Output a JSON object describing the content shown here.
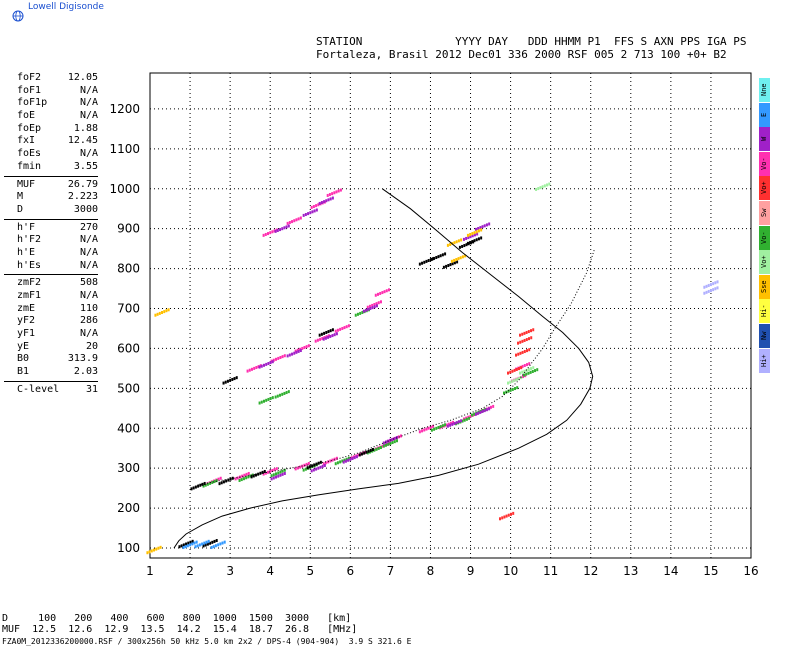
{
  "header": {
    "brand": "Lowell Digisonde",
    "line1": "STATION              YYYY DAY   DDD HHMM P1  FFS S AXN PPS IGA PS",
    "line2": "Fortaleza, Brasil 2012 Dec01 336 2000 RSF 005 2 713 100 +0+ B2"
  },
  "params": [
    {
      "label": "foF2",
      "value": "12.05"
    },
    {
      "label": "foF1",
      "value": "N/A"
    },
    {
      "label": "foF1p",
      "value": "N/A"
    },
    {
      "label": "foE",
      "value": "N/A"
    },
    {
      "label": "foEp",
      "value": "1.88"
    },
    {
      "label": "fxI",
      "value": "12.45"
    },
    {
      "label": "foEs",
      "value": "N/A"
    },
    {
      "label": "fmin",
      "value": "3.55"
    },
    {
      "sep": true
    },
    {
      "label": "MUF",
      "value": "26.79"
    },
    {
      "label": "M",
      "value": "2.223"
    },
    {
      "label": "D",
      "value": "3000"
    },
    {
      "sep": true
    },
    {
      "label": "h'F",
      "value": "270"
    },
    {
      "label": "h'F2",
      "value": "N/A"
    },
    {
      "label": "h'E",
      "value": "N/A"
    },
    {
      "label": "h'Es",
      "value": "N/A"
    },
    {
      "sep": true
    },
    {
      "label": "zmF2",
      "value": "508"
    },
    {
      "label": "zmF1",
      "value": "N/A"
    },
    {
      "label": "zmE",
      "value": "110"
    },
    {
      "label": "yF2",
      "value": "286"
    },
    {
      "label": "yF1",
      "value": "N/A"
    },
    {
      "label": "yE",
      "value": "20"
    },
    {
      "label": "B0",
      "value": "313.9"
    },
    {
      "label": "B1",
      "value": "2.03"
    },
    {
      "sep": true
    },
    {
      "label": "C-level",
      "value": "31"
    }
  ],
  "legend": [
    {
      "label": "Nne",
      "color": "#6ff0f0"
    },
    {
      "label": "E",
      "color": "#3399ff"
    },
    {
      "label": "W",
      "color": "#a020c8"
    },
    {
      "label": "Vo-",
      "color": "#ff30b0"
    },
    {
      "label": "Vo+",
      "color": "#ff3030"
    },
    {
      "label": "Sw",
      "color": "#ffa0a0"
    },
    {
      "label": "Vo-",
      "color": "#30b030"
    },
    {
      "label": "Vo+",
      "color": "#a0f0a0"
    },
    {
      "label": "Sse",
      "color": "#ffc000"
    },
    {
      "label": "Hi-",
      "color": "#ffff40"
    },
    {
      "label": "Nw",
      "color": "#2050b0"
    },
    {
      "label": "Hi+",
      "color": "#b0b0ff"
    }
  ],
  "muf_table": {
    "line1": "D     100   200   400   600   800  1000  1500  3000   [km]",
    "line2": "MUF  12.5  12.6  12.9  13.5  14.2  15.4  18.7  26.8   [MHz]"
  },
  "footer": "FZA0M_2012336200000.RSF / 300x256h 50 kHz 5.0 km 2x2 / DPS-4 (904-904)  3.9 S 321.6 E",
  "chart_data": {
    "type": "scatter",
    "title": "",
    "xlabel": "",
    "ylabel": "",
    "xlim": [
      1,
      16
    ],
    "ylim": [
      75,
      1290
    ],
    "xticks": [
      1,
      2,
      3,
      4,
      5,
      6,
      7,
      8,
      9,
      10,
      11,
      12,
      13,
      14,
      15,
      16
    ],
    "yticks": [
      100,
      200,
      300,
      400,
      500,
      600,
      700,
      800,
      900,
      1000,
      1100,
      1200
    ],
    "grid": true,
    "profile_curve": [
      [
        1.6,
        100
      ],
      [
        1.72,
        118
      ],
      [
        1.9,
        135
      ],
      [
        2.3,
        158
      ],
      [
        2.8,
        180
      ],
      [
        3.5,
        200
      ],
      [
        4.3,
        218
      ],
      [
        5.2,
        233
      ],
      [
        6.2,
        248
      ],
      [
        7.2,
        262
      ],
      [
        8.2,
        282
      ],
      [
        9.2,
        310
      ],
      [
        10.2,
        350
      ],
      [
        10.9,
        385
      ],
      [
        11.4,
        420
      ],
      [
        11.75,
        460
      ],
      [
        11.98,
        500
      ],
      [
        12.05,
        530
      ],
      [
        11.95,
        565
      ],
      [
        11.7,
        600
      ],
      [
        11.3,
        640
      ],
      [
        10.8,
        680
      ],
      [
        10.2,
        730
      ],
      [
        9.5,
        785
      ],
      [
        8.8,
        840
      ],
      [
        8.1,
        900
      ],
      [
        7.5,
        950
      ],
      [
        6.8,
        1000
      ]
    ],
    "trace_curve": [
      [
        2.2,
        258
      ],
      [
        2.8,
        270
      ],
      [
        3.5,
        282
      ],
      [
        4.5,
        300
      ],
      [
        5.5,
        318
      ],
      [
        6.2,
        338
      ],
      [
        7.0,
        370
      ],
      [
        7.8,
        400
      ],
      [
        8.5,
        420
      ],
      [
        9.3,
        450
      ],
      [
        9.8,
        480
      ],
      [
        10.2,
        520
      ],
      [
        10.5,
        560
      ],
      [
        10.8,
        600
      ],
      [
        11.1,
        650
      ],
      [
        11.5,
        710
      ],
      [
        11.9,
        790
      ],
      [
        12.1,
        850
      ]
    ],
    "echo_series": [
      {
        "color": "#ff30b0",
        "points": [
          [
            2.6,
            268
          ],
          [
            3.3,
            280
          ],
          [
            4.0,
            292
          ],
          [
            4.8,
            305
          ],
          [
            5.5,
            318
          ],
          [
            6.2,
            333
          ],
          [
            6.8,
            355
          ],
          [
            7.1,
            374
          ],
          [
            7.9,
            398
          ],
          [
            8.4,
            408
          ],
          [
            9.0,
            430
          ],
          [
            9.4,
            448
          ],
          [
            10.2,
            525
          ],
          [
            10.3,
            555
          ],
          [
            3.6,
            550
          ],
          [
            4.2,
            575
          ],
          [
            4.8,
            600
          ],
          [
            5.3,
            625
          ],
          [
            5.8,
            650
          ],
          [
            4.0,
            890
          ],
          [
            4.6,
            920
          ],
          [
            5.2,
            960
          ],
          [
            5.6,
            990
          ],
          [
            6.6,
            710
          ],
          [
            6.8,
            740
          ]
        ]
      },
      {
        "color": "#30b030",
        "points": [
          [
            2.5,
            262
          ],
          [
            3.4,
            276
          ],
          [
            4.2,
            288
          ],
          [
            5.0,
            302
          ],
          [
            5.8,
            318
          ],
          [
            6.6,
            345
          ],
          [
            7.0,
            362
          ],
          [
            8.2,
            402
          ],
          [
            8.8,
            418
          ],
          [
            9.2,
            440
          ],
          [
            10.0,
            495
          ],
          [
            10.5,
            540
          ],
          [
            3.9,
            470
          ],
          [
            4.3,
            485
          ],
          [
            6.3,
            690
          ]
        ]
      },
      {
        "color": "#a020c8",
        "points": [
          [
            4.2,
            280
          ],
          [
            5.2,
            300
          ],
          [
            6.0,
            322
          ],
          [
            7.0,
            370
          ],
          [
            8.6,
            412
          ],
          [
            9.3,
            442
          ],
          [
            3.9,
            560
          ],
          [
            4.6,
            588
          ],
          [
            5.5,
            630
          ],
          [
            4.3,
            900
          ],
          [
            5.0,
            940
          ],
          [
            5.4,
            970
          ],
          [
            6.5,
            700
          ],
          [
            9.0,
            880
          ],
          [
            9.3,
            905
          ]
        ]
      },
      {
        "color": "#000000",
        "points": [
          [
            2.2,
            255
          ],
          [
            2.9,
            268
          ],
          [
            3.7,
            285
          ],
          [
            5.1,
            308
          ],
          [
            6.4,
            340
          ],
          [
            7.9,
            818
          ],
          [
            8.2,
            830
          ],
          [
            8.5,
            810
          ],
          [
            8.9,
            860
          ],
          [
            9.1,
            870
          ],
          [
            3.0,
            520
          ],
          [
            5.4,
            640
          ],
          [
            1.9,
            110
          ],
          [
            2.5,
            112
          ]
        ]
      },
      {
        "color": "#3399ff",
        "points": [
          [
            2.0,
            108
          ],
          [
            2.3,
            110
          ],
          [
            2.7,
            108
          ]
        ]
      },
      {
        "color": "#ff3030",
        "points": [
          [
            10.3,
            590
          ],
          [
            10.35,
            620
          ],
          [
            10.4,
            640
          ],
          [
            10.1,
            545
          ],
          [
            9.9,
            180
          ]
        ]
      },
      {
        "color": "#ffc000",
        "points": [
          [
            1.3,
            690
          ],
          [
            1.1,
            95
          ],
          [
            8.7,
            825
          ],
          [
            9.1,
            890
          ],
          [
            8.6,
            865
          ]
        ]
      },
      {
        "color": "#a0f0a0",
        "points": [
          [
            10.1,
            520
          ],
          [
            10.4,
            545
          ],
          [
            10.8,
            1005
          ]
        ]
      },
      {
        "color": "#b0b0ff",
        "points": [
          [
            15.0,
            760
          ],
          [
            15.0,
            745
          ]
        ]
      }
    ]
  }
}
